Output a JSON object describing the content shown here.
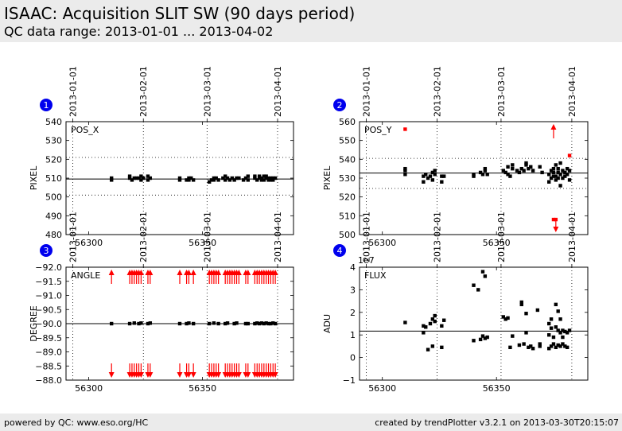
{
  "header": {
    "title": "ISAAC: Acquisition SLIT SW (90 days period)",
    "subtitle": "QC data range: 2013-01-01 ... 2013-04-02"
  },
  "footer": {
    "left": "powered by QC: www.eso.org/HC",
    "right": "created by trendPlotter v3.2.1 on 2013-03-30T20:15:07"
  },
  "date_labels": [
    "2013-01-01",
    "2013-02-01",
    "2013-03-01",
    "2013-04-01"
  ],
  "date_mjd": [
    56293,
    56324,
    56352,
    56383
  ],
  "colors": {
    "normal": "#000000",
    "outlier": "#ff0000",
    "badge": "#0000ee"
  },
  "chart_data": [
    {
      "type": "scatter",
      "badge": "1",
      "label": "POS_X",
      "ylabel": "PIXEL",
      "xlim": [
        56290,
        56390
      ],
      "ylim": [
        480,
        540
      ],
      "xticks": [
        56300,
        56350
      ],
      "yticks": [
        480,
        490,
        500,
        510,
        520,
        530,
        540
      ],
      "ytick_labels": [
        "480",
        "490",
        "500",
        "510",
        "520",
        "530",
        "540"
      ],
      "reference_line": 509.5,
      "dotted_lines": [
        501,
        521
      ],
      "points": [
        [
          56310,
          509
        ],
        [
          56310,
          510
        ],
        [
          56318,
          510
        ],
        [
          56318,
          511
        ],
        [
          56319,
          509
        ],
        [
          56320,
          510
        ],
        [
          56321,
          510
        ],
        [
          56322,
          510
        ],
        [
          56323,
          509
        ],
        [
          56323,
          511
        ],
        [
          56324,
          510
        ],
        [
          56326,
          509
        ],
        [
          56326,
          511
        ],
        [
          56327,
          510
        ],
        [
          56340,
          509
        ],
        [
          56340,
          510
        ],
        [
          56343,
          509
        ],
        [
          56344,
          510
        ],
        [
          56344,
          509
        ],
        [
          56345,
          510
        ],
        [
          56346,
          509
        ],
        [
          56353,
          508
        ],
        [
          56354,
          509
        ],
        [
          56355,
          510
        ],
        [
          56355,
          509
        ],
        [
          56356,
          510
        ],
        [
          56357,
          509
        ],
        [
          56359,
          510
        ],
        [
          56360,
          511
        ],
        [
          56360,
          509
        ],
        [
          56361,
          510
        ],
        [
          56362,
          509
        ],
        [
          56363,
          510
        ],
        [
          56364,
          509
        ],
        [
          56365,
          510
        ],
        [
          56366,
          510
        ],
        [
          56368,
          509
        ],
        [
          56369,
          510
        ],
        [
          56370,
          511
        ],
        [
          56370,
          509
        ],
        [
          56373,
          510
        ],
        [
          56373,
          511
        ],
        [
          56374,
          509
        ],
        [
          56375,
          510
        ],
        [
          56375,
          511
        ],
        [
          56376,
          509
        ],
        [
          56376,
          510
        ],
        [
          56377,
          511
        ],
        [
          56377,
          509
        ],
        [
          56378,
          510
        ],
        [
          56378,
          511
        ],
        [
          56379,
          509
        ],
        [
          56379,
          510
        ],
        [
          56380,
          510
        ],
        [
          56380,
          509
        ],
        [
          56381,
          510
        ],
        [
          56381,
          509
        ],
        [
          56382,
          510
        ]
      ],
      "outliers": [],
      "arrows_up": [],
      "arrows_down": []
    },
    {
      "type": "scatter",
      "badge": "2",
      "label": "POS_Y",
      "ylabel": "PIXEL",
      "xlim": [
        56290,
        56390
      ],
      "ylim": [
        500,
        560
      ],
      "xticks": [
        56300,
        56350
      ],
      "yticks": [
        500,
        510,
        520,
        530,
        540,
        550,
        560
      ],
      "ytick_labels": [
        "500",
        "510",
        "520",
        "530",
        "540",
        "550",
        "560"
      ],
      "reference_line": 532.7,
      "dotted_lines": [
        524.5,
        540.5
      ],
      "points": [
        [
          56310,
          532
        ],
        [
          56310,
          534
        ],
        [
          56310,
          535
        ],
        [
          56318,
          528
        ],
        [
          56318,
          531
        ],
        [
          56319,
          532
        ],
        [
          56320,
          530
        ],
        [
          56321,
          531
        ],
        [
          56322,
          533
        ],
        [
          56322,
          529
        ],
        [
          56323,
          534
        ],
        [
          56323,
          532
        ],
        [
          56326,
          531
        ],
        [
          56326,
          528
        ],
        [
          56327,
          531
        ],
        [
          56340,
          531
        ],
        [
          56340,
          532
        ],
        [
          56343,
          533
        ],
        [
          56344,
          532
        ],
        [
          56345,
          535
        ],
        [
          56345,
          534
        ],
        [
          56346,
          532
        ],
        [
          56353,
          534
        ],
        [
          56354,
          533
        ],
        [
          56355,
          532
        ],
        [
          56355,
          536
        ],
        [
          56356,
          531
        ],
        [
          56357,
          535
        ],
        [
          56357,
          537
        ],
        [
          56359,
          534
        ],
        [
          56360,
          533
        ],
        [
          56361,
          535
        ],
        [
          56362,
          534
        ],
        [
          56363,
          538
        ],
        [
          56363,
          537
        ],
        [
          56364,
          535
        ],
        [
          56365,
          536
        ],
        [
          56366,
          534
        ],
        [
          56369,
          536
        ],
        [
          56370,
          533
        ],
        [
          56373,
          528
        ],
        [
          56373,
          532
        ],
        [
          56374,
          530
        ],
        [
          56374,
          534
        ],
        [
          56375,
          531
        ],
        [
          56375,
          533
        ],
        [
          56375,
          535
        ],
        [
          56376,
          529
        ],
        [
          56376,
          531
        ],
        [
          56376,
          537
        ],
        [
          56377,
          530
        ],
        [
          56377,
          533
        ],
        [
          56377,
          535
        ],
        [
          56378,
          526
        ],
        [
          56378,
          532
        ],
        [
          56378,
          538
        ],
        [
          56379,
          530
        ],
        [
          56379,
          534
        ],
        [
          56380,
          531
        ],
        [
          56380,
          533
        ],
        [
          56381,
          532
        ],
        [
          56381,
          535
        ],
        [
          56382,
          529
        ],
        [
          56382,
          534
        ]
      ],
      "outliers": [
        [
          56310,
          556
        ],
        [
          56375,
          508
        ],
        [
          56376,
          508
        ],
        [
          56382,
          542
        ]
      ],
      "arrows_up": [
        56375
      ],
      "arrows_down": [
        56376
      ]
    },
    {
      "type": "scatter",
      "badge": "3",
      "label": "ANGLE",
      "ylabel": "DEGREE",
      "xlim": [
        56290,
        56390
      ],
      "ylim": [
        -92,
        -88
      ],
      "invert_y": true,
      "xticks": [
        56300,
        56350
      ],
      "yticks": [
        -92,
        -91.5,
        -91,
        -90.5,
        -90,
        -89.5,
        -89,
        -88.5,
        -88
      ],
      "ytick_labels": [
        "−92.0",
        "−91.5",
        "−91.0",
        "−90.5",
        "−90.0",
        "−89.5",
        "−89.0",
        "−88.5",
        "−88.0"
      ],
      "reference_line": -90.0,
      "dotted_lines": [],
      "points": [
        [
          56310,
          -90.0
        ],
        [
          56318,
          -90.0
        ],
        [
          56320,
          -90.02
        ],
        [
          56322,
          -90.0
        ],
        [
          56323,
          -90.02
        ],
        [
          56326,
          -90.0
        ],
        [
          56327,
          -90.02
        ],
        [
          56340,
          -90.0
        ],
        [
          56343,
          -90.0
        ],
        [
          56344,
          -90.02
        ],
        [
          56346,
          -90.0
        ],
        [
          56353,
          -90.0
        ],
        [
          56355,
          -90.02
        ],
        [
          56357,
          -90.0
        ],
        [
          56360,
          -90.0
        ],
        [
          56361,
          -90.02
        ],
        [
          56364,
          -90.0
        ],
        [
          56365,
          -90.02
        ],
        [
          56369,
          -90.0
        ],
        [
          56370,
          -90.0
        ],
        [
          56373,
          -90.0
        ],
        [
          56374,
          -90.02
        ],
        [
          56375,
          -90.0
        ],
        [
          56376,
          -90.02
        ],
        [
          56377,
          -90.0
        ],
        [
          56378,
          -90.02
        ],
        [
          56379,
          -90.0
        ],
        [
          56380,
          -90.0
        ],
        [
          56381,
          -90.02
        ],
        [
          56382,
          -90.0
        ]
      ],
      "outliers": [],
      "arrows_up": [
        56310,
        56318,
        56319,
        56320,
        56321,
        56322,
        56323,
        56326,
        56327,
        56340,
        56343,
        56344,
        56346,
        56353,
        56354,
        56355,
        56356,
        56357,
        56360,
        56361,
        56362,
        56363,
        56364,
        56365,
        56366,
        56369,
        56370,
        56373,
        56374,
        56375,
        56376,
        56377,
        56378,
        56379,
        56380,
        56381,
        56382
      ],
      "arrows_down": [
        56310,
        56318,
        56319,
        56320,
        56321,
        56322,
        56323,
        56326,
        56327,
        56340,
        56343,
        56344,
        56346,
        56353,
        56354,
        56355,
        56356,
        56357,
        56360,
        56361,
        56362,
        56363,
        56364,
        56365,
        56366,
        56369,
        56370,
        56373,
        56374,
        56375,
        56376,
        56377,
        56378,
        56379,
        56380,
        56381,
        56382
      ]
    },
    {
      "type": "scatter",
      "badge": "4",
      "label": "FLUX",
      "ylabel": "ADU",
      "yscale_label": "1e7",
      "xlim": [
        56290,
        56390
      ],
      "ylim": [
        -1,
        4
      ],
      "xticks": [
        56300,
        56350
      ],
      "yticks": [
        -1,
        0,
        1,
        2,
        3,
        4
      ],
      "ytick_labels": [
        "−1",
        "0",
        "1",
        "2",
        "3",
        "4"
      ],
      "reference_line": 1.17,
      "dotted_lines": [],
      "points": [
        [
          56310,
          1.55
        ],
        [
          56318,
          1.1
        ],
        [
          56318,
          1.4
        ],
        [
          56319,
          1.35
        ],
        [
          56320,
          0.35
        ],
        [
          56321,
          1.5
        ],
        [
          56322,
          0.5
        ],
        [
          56322,
          1.7
        ],
        [
          56323,
          1.6
        ],
        [
          56323,
          1.85
        ],
        [
          56326,
          1.4
        ],
        [
          56326,
          0.45
        ],
        [
          56327,
          1.65
        ],
        [
          56340,
          3.2
        ],
        [
          56340,
          0.75
        ],
        [
          56342,
          3.0
        ],
        [
          56343,
          0.8
        ],
        [
          56344,
          3.8
        ],
        [
          56344,
          0.95
        ],
        [
          56345,
          3.6
        ],
        [
          56345,
          0.85
        ],
        [
          56346,
          0.9
        ],
        [
          56353,
          1.8
        ],
        [
          56354,
          1.7
        ],
        [
          56355,
          1.75
        ],
        [
          56356,
          0.45
        ],
        [
          56357,
          0.95
        ],
        [
          56360,
          0.55
        ],
        [
          56361,
          2.35
        ],
        [
          56361,
          2.45
        ],
        [
          56362,
          0.6
        ],
        [
          56363,
          1.1
        ],
        [
          56363,
          1.95
        ],
        [
          56364,
          0.45
        ],
        [
          56365,
          0.5
        ],
        [
          56366,
          0.4
        ],
        [
          56368,
          2.1
        ],
        [
          56369,
          0.5
        ],
        [
          56369,
          0.6
        ],
        [
          56373,
          1.5
        ],
        [
          56373,
          0.4
        ],
        [
          56373,
          1.0
        ],
        [
          56374,
          1.7
        ],
        [
          56374,
          1.3
        ],
        [
          56374,
          0.5
        ],
        [
          56375,
          0.9
        ],
        [
          56375,
          0.6
        ],
        [
          56376,
          2.35
        ],
        [
          56376,
          1.35
        ],
        [
          56376,
          0.45
        ],
        [
          56377,
          2.05
        ],
        [
          56377,
          1.2
        ],
        [
          56377,
          0.55
        ],
        [
          56378,
          1.7
        ],
        [
          56378,
          0.5
        ],
        [
          56378,
          1.1
        ],
        [
          56379,
          0.9
        ],
        [
          56379,
          1.2
        ],
        [
          56379,
          0.6
        ],
        [
          56380,
          1.15
        ],
        [
          56380,
          0.5
        ],
        [
          56381,
          0.45
        ],
        [
          56381,
          1.1
        ],
        [
          56382,
          1.2
        ]
      ],
      "outliers": [],
      "arrows_up": [],
      "arrows_down": []
    }
  ]
}
